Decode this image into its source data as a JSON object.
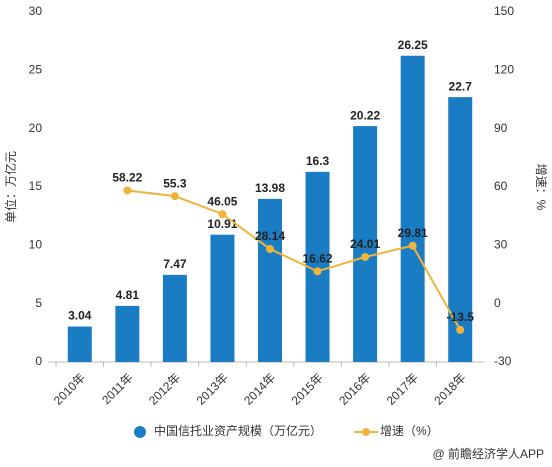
{
  "chart_data": {
    "type": "bar",
    "categories": [
      "2010年",
      "2011年",
      "2012年",
      "2013年",
      "2014年",
      "2015年",
      "2016年",
      "2017年",
      "2018年"
    ],
    "series": [
      {
        "name": "中国信托业资产规模（万亿元）",
        "type": "bar",
        "color": "#1a7dc4",
        "values": [
          3.04,
          4.81,
          7.47,
          10.91,
          13.98,
          16.3,
          20.22,
          26.25,
          22.7
        ]
      },
      {
        "name": "增速（%）",
        "type": "line",
        "axis": "y2",
        "color": "#f0b43c",
        "values": [
          null,
          58.22,
          55.3,
          46.05,
          28.14,
          16.62,
          24.01,
          29.81,
          -13.5
        ]
      }
    ],
    "ylabel": "单位：万亿元",
    "y2label": "增速：%",
    "ylim": [
      0,
      30
    ],
    "yticks": [
      0,
      5,
      10,
      15,
      20,
      25,
      30
    ],
    "y2lim": [
      -30,
      150
    ],
    "y2ticks": [
      -30,
      0,
      30,
      60,
      90,
      120,
      150
    ],
    "source": "@ 前瞻经济学人APP"
  }
}
